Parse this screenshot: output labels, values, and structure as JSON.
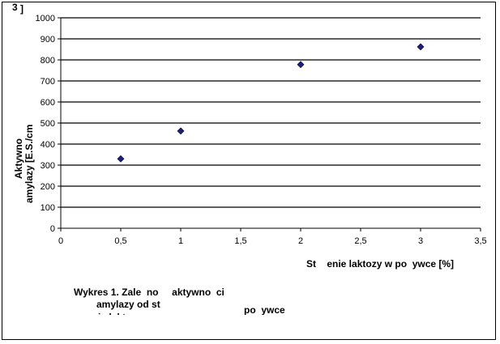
{
  "chart_data": {
    "type": "scatter",
    "x": [
      0.5,
      1,
      2,
      3
    ],
    "y": [
      330,
      462,
      778,
      862
    ],
    "xlim": [
      0,
      3.5
    ],
    "ylim": [
      0,
      1000
    ],
    "x_ticks": [
      "0",
      "0,5",
      "1",
      "1,5",
      "2",
      "2,5",
      "3",
      "3,5"
    ],
    "y_ticks": [
      "0",
      "100",
      "200",
      "300",
      "400",
      "500",
      "600",
      "700",
      "800",
      "900",
      "1000"
    ],
    "xlabel": "St    enie laktozy w po  ywce [%]",
    "ylabel_line1": "Aktywno",
    "ylabel_line2": "amylazy [E.S./cm",
    "ylabel_sup": "3",
    "ylabel_end": "]",
    "grid": true,
    "marker_color": "#1f1f7a",
    "caption": {
      "line1": "Wykres 1. Zale  no     aktywno  ci",
      "line2": "amylazy od st",
      "line2b": "po  ywce",
      "line3": "enia laktozy w"
    }
  }
}
